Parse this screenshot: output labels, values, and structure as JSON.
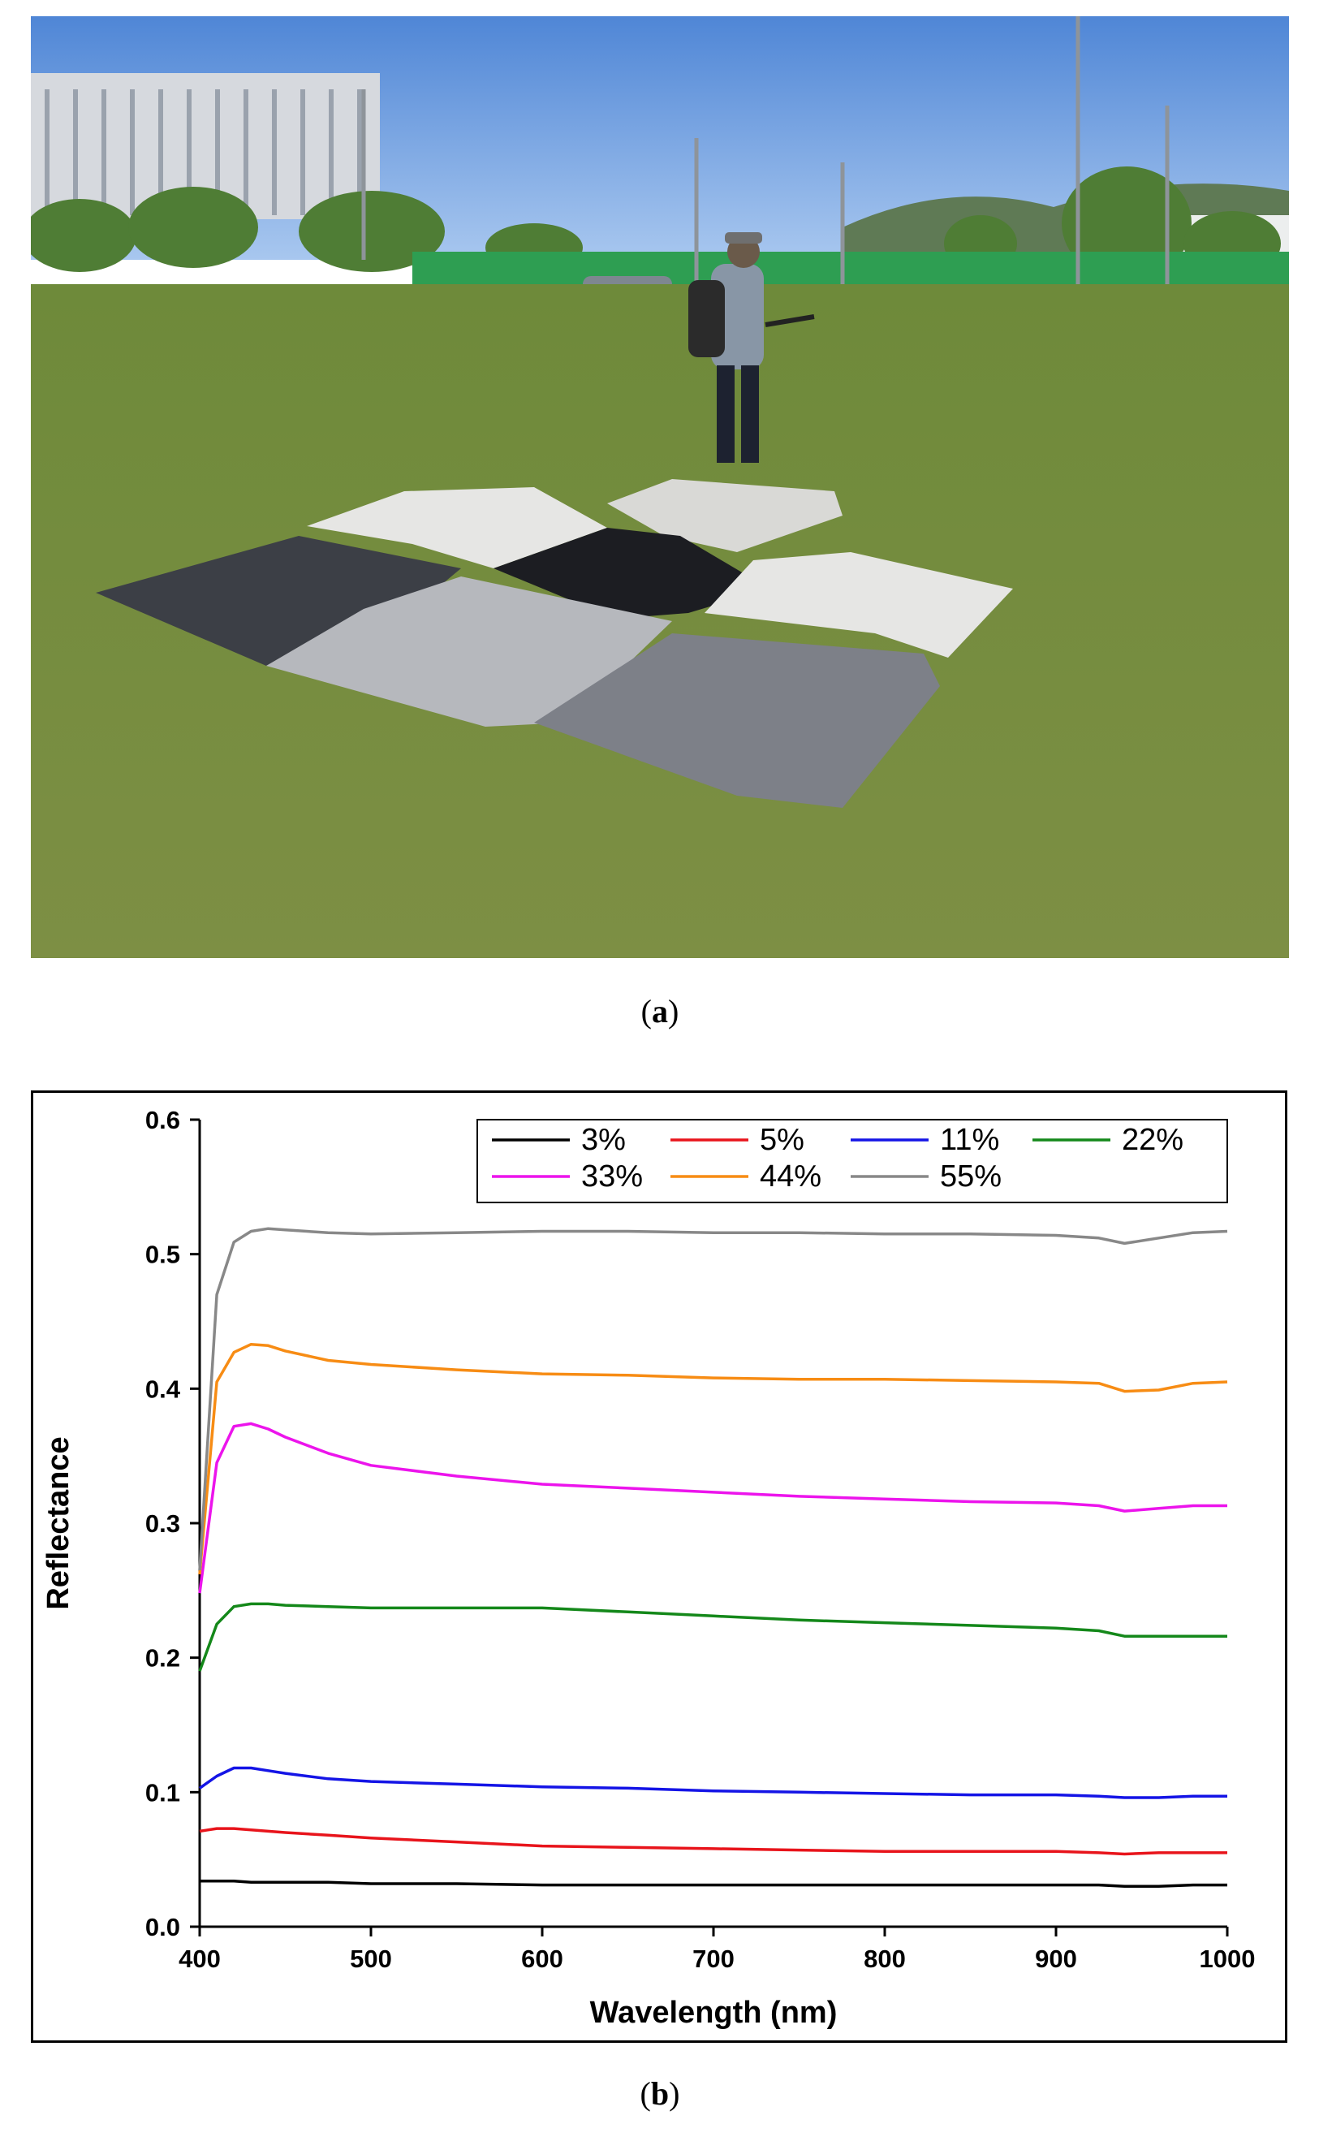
{
  "captions": {
    "a": "a",
    "b": "b"
  },
  "colors": {
    "sky_top": "#4f86d6",
    "sky_bottom": "#a8c7ef",
    "grass_far": "#6e8a3a",
    "grass_near": "#7d8f44",
    "fence": "#2e9e52",
    "tarp_black": "#1c1d22",
    "tarp_dark": "#3c3f46",
    "tarp_mid": "#7d8088",
    "tarp_light": "#b6b8bd",
    "tarp_white": "#e6e6e4",
    "tarp_offwhite": "#d9d9d6"
  },
  "chart_data": {
    "type": "line",
    "xlabel": "Wavelength (nm)",
    "ylabel": "Reflectance",
    "xlim": [
      400,
      1000
    ],
    "ylim": [
      0.0,
      0.6
    ],
    "xticks": [
      "400",
      "500",
      "600",
      "700",
      "800",
      "900",
      "1000"
    ],
    "yticks": [
      "0.0",
      "0.1",
      "0.2",
      "0.3",
      "0.4",
      "0.5",
      "0.6"
    ],
    "grid": false,
    "legend_position": "top-right",
    "x": [
      400,
      410,
      420,
      430,
      440,
      450,
      475,
      500,
      550,
      600,
      650,
      700,
      750,
      800,
      850,
      900,
      925,
      940,
      960,
      980,
      1000
    ],
    "series": [
      {
        "name": "3%",
        "color": "#000000",
        "values": [
          0.034,
          0.034,
          0.034,
          0.033,
          0.033,
          0.033,
          0.033,
          0.032,
          0.032,
          0.031,
          0.031,
          0.031,
          0.031,
          0.031,
          0.031,
          0.031,
          0.031,
          0.03,
          0.03,
          0.031,
          0.031
        ]
      },
      {
        "name": "5%",
        "color": "#e8141b",
        "values": [
          0.071,
          0.073,
          0.073,
          0.072,
          0.071,
          0.07,
          0.068,
          0.066,
          0.063,
          0.06,
          0.059,
          0.058,
          0.057,
          0.056,
          0.056,
          0.056,
          0.055,
          0.054,
          0.055,
          0.055,
          0.055
        ]
      },
      {
        "name": "11%",
        "color": "#1414e6",
        "values": [
          0.103,
          0.112,
          0.118,
          0.118,
          0.116,
          0.114,
          0.11,
          0.108,
          0.106,
          0.104,
          0.103,
          0.101,
          0.1,
          0.099,
          0.098,
          0.098,
          0.097,
          0.096,
          0.096,
          0.097,
          0.097
        ]
      },
      {
        "name": "22%",
        "color": "#14881a",
        "values": [
          0.19,
          0.225,
          0.238,
          0.24,
          0.24,
          0.239,
          0.238,
          0.237,
          0.237,
          0.237,
          0.234,
          0.231,
          0.228,
          0.226,
          0.224,
          0.222,
          0.22,
          0.216,
          0.216,
          0.216,
          0.216
        ]
      },
      {
        "name": "33%",
        "color": "#ec14ec",
        "values": [
          0.248,
          0.345,
          0.372,
          0.374,
          0.37,
          0.364,
          0.352,
          0.343,
          0.335,
          0.329,
          0.326,
          0.323,
          0.32,
          0.318,
          0.316,
          0.315,
          0.313,
          0.309,
          0.311,
          0.313,
          0.313
        ]
      },
      {
        "name": "44%",
        "color": "#f78c14",
        "values": [
          0.262,
          0.405,
          0.427,
          0.433,
          0.432,
          0.428,
          0.421,
          0.418,
          0.414,
          0.411,
          0.41,
          0.408,
          0.407,
          0.407,
          0.406,
          0.405,
          0.404,
          0.398,
          0.399,
          0.404,
          0.405
        ]
      },
      {
        "name": "55%",
        "color": "#888888",
        "values": [
          0.265,
          0.47,
          0.509,
          0.517,
          0.519,
          0.518,
          0.516,
          0.515,
          0.516,
          0.517,
          0.517,
          0.516,
          0.516,
          0.515,
          0.515,
          0.514,
          0.512,
          0.508,
          0.512,
          0.516,
          0.517
        ]
      }
    ]
  }
}
